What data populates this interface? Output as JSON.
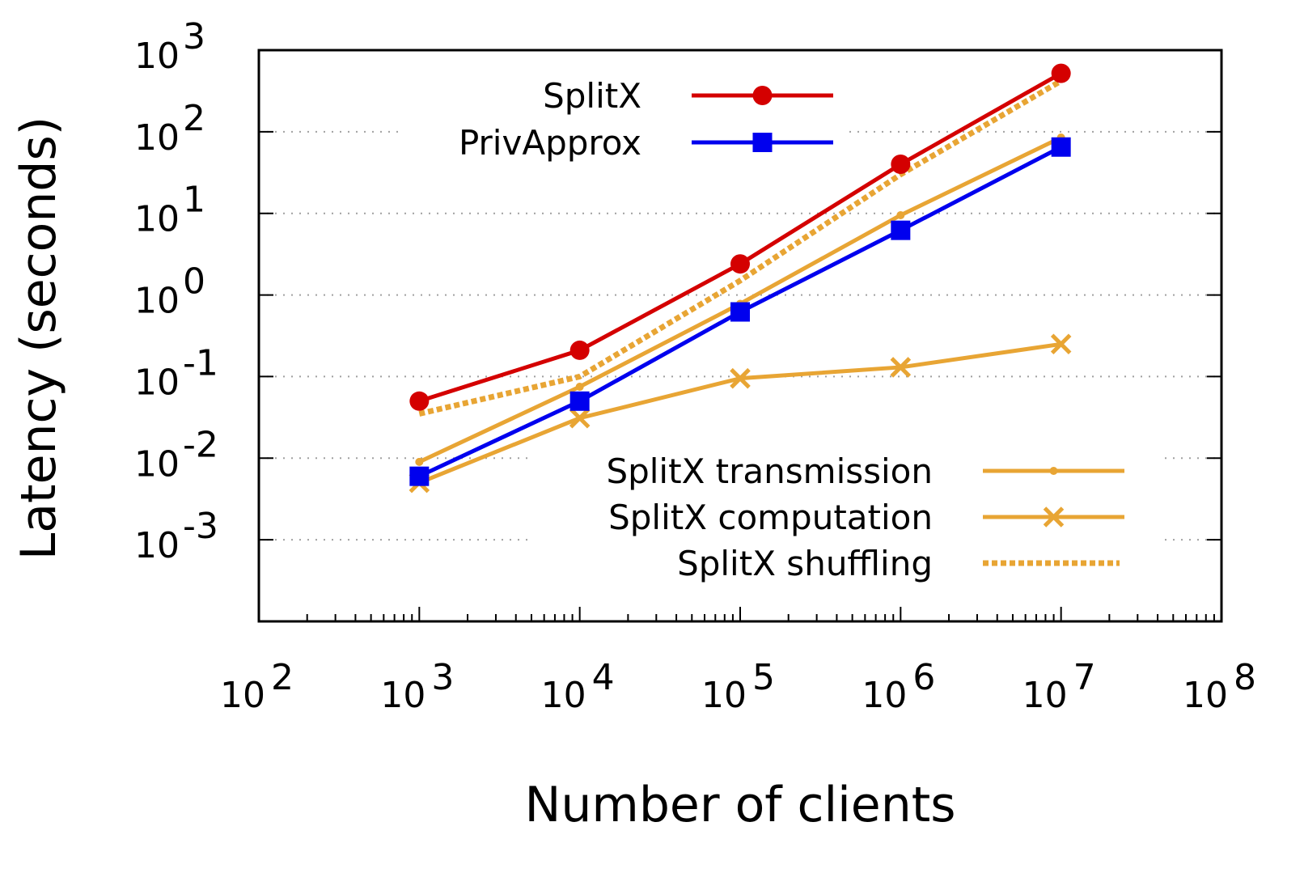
{
  "chart_data": {
    "type": "line",
    "title": "",
    "xlabel": "Number of clients",
    "ylabel": "Latency (seconds)",
    "xscale": "log",
    "yscale": "log",
    "xlim": [
      100,
      100000000
    ],
    "ylim": [
      0.0001,
      1000
    ],
    "x_ticks": [
      {
        "value": 100,
        "base": "10",
        "exp": "2"
      },
      {
        "value": 1000,
        "base": "10",
        "exp": "3"
      },
      {
        "value": 10000,
        "base": "10",
        "exp": "4"
      },
      {
        "value": 100000,
        "base": "10",
        "exp": "5"
      },
      {
        "value": 1000000,
        "base": "10",
        "exp": "6"
      },
      {
        "value": 10000000,
        "base": "10",
        "exp": "7"
      },
      {
        "value": 100000000,
        "base": "10",
        "exp": "8"
      }
    ],
    "y_ticks": [
      {
        "value": 0.001,
        "base": "10",
        "exp": "-3"
      },
      {
        "value": 0.01,
        "base": "10",
        "exp": "-2"
      },
      {
        "value": 0.1,
        "base": "10",
        "exp": "-1"
      },
      {
        "value": 1,
        "base": "10",
        "exp": "0"
      },
      {
        "value": 10,
        "base": "10",
        "exp": "1"
      },
      {
        "value": 100,
        "base": "10",
        "exp": "2"
      },
      {
        "value": 1000,
        "base": "10",
        "exp": "3"
      }
    ],
    "grid": "y-dotted",
    "x": [
      1000,
      10000,
      100000,
      1000000,
      10000000
    ],
    "series": [
      {
        "name": "SplitX",
        "color": "#d40000",
        "marker": "circle",
        "dash": "solid",
        "values": [
          0.05,
          0.21,
          2.4,
          40,
          520
        ]
      },
      {
        "name": "PrivApprox",
        "color": "#0000ee",
        "marker": "square",
        "dash": "solid",
        "values": [
          0.006,
          0.05,
          0.62,
          6.2,
          65
        ]
      },
      {
        "name": "SplitX transmission",
        "color": "#e8a534",
        "marker": "dot",
        "dash": "solid",
        "values": [
          0.009,
          0.075,
          0.78,
          9.5,
          85
        ]
      },
      {
        "name": "SplitX computation",
        "color": "#e8a534",
        "marker": "x",
        "dash": "solid",
        "values": [
          0.005,
          0.031,
          0.095,
          0.13,
          0.25
        ]
      },
      {
        "name": "SplitX shuffling",
        "color": "#e8a534",
        "marker": "none",
        "dash": "dotted",
        "values": [
          0.035,
          0.1,
          1.5,
          30,
          420
        ]
      }
    ],
    "legend": [
      {
        "position": "top-left",
        "entries": [
          "SplitX",
          "PrivApprox"
        ]
      },
      {
        "position": "bottom-right",
        "entries": [
          "SplitX transmission",
          "SplitX computation",
          "SplitX shuffling"
        ]
      }
    ]
  }
}
